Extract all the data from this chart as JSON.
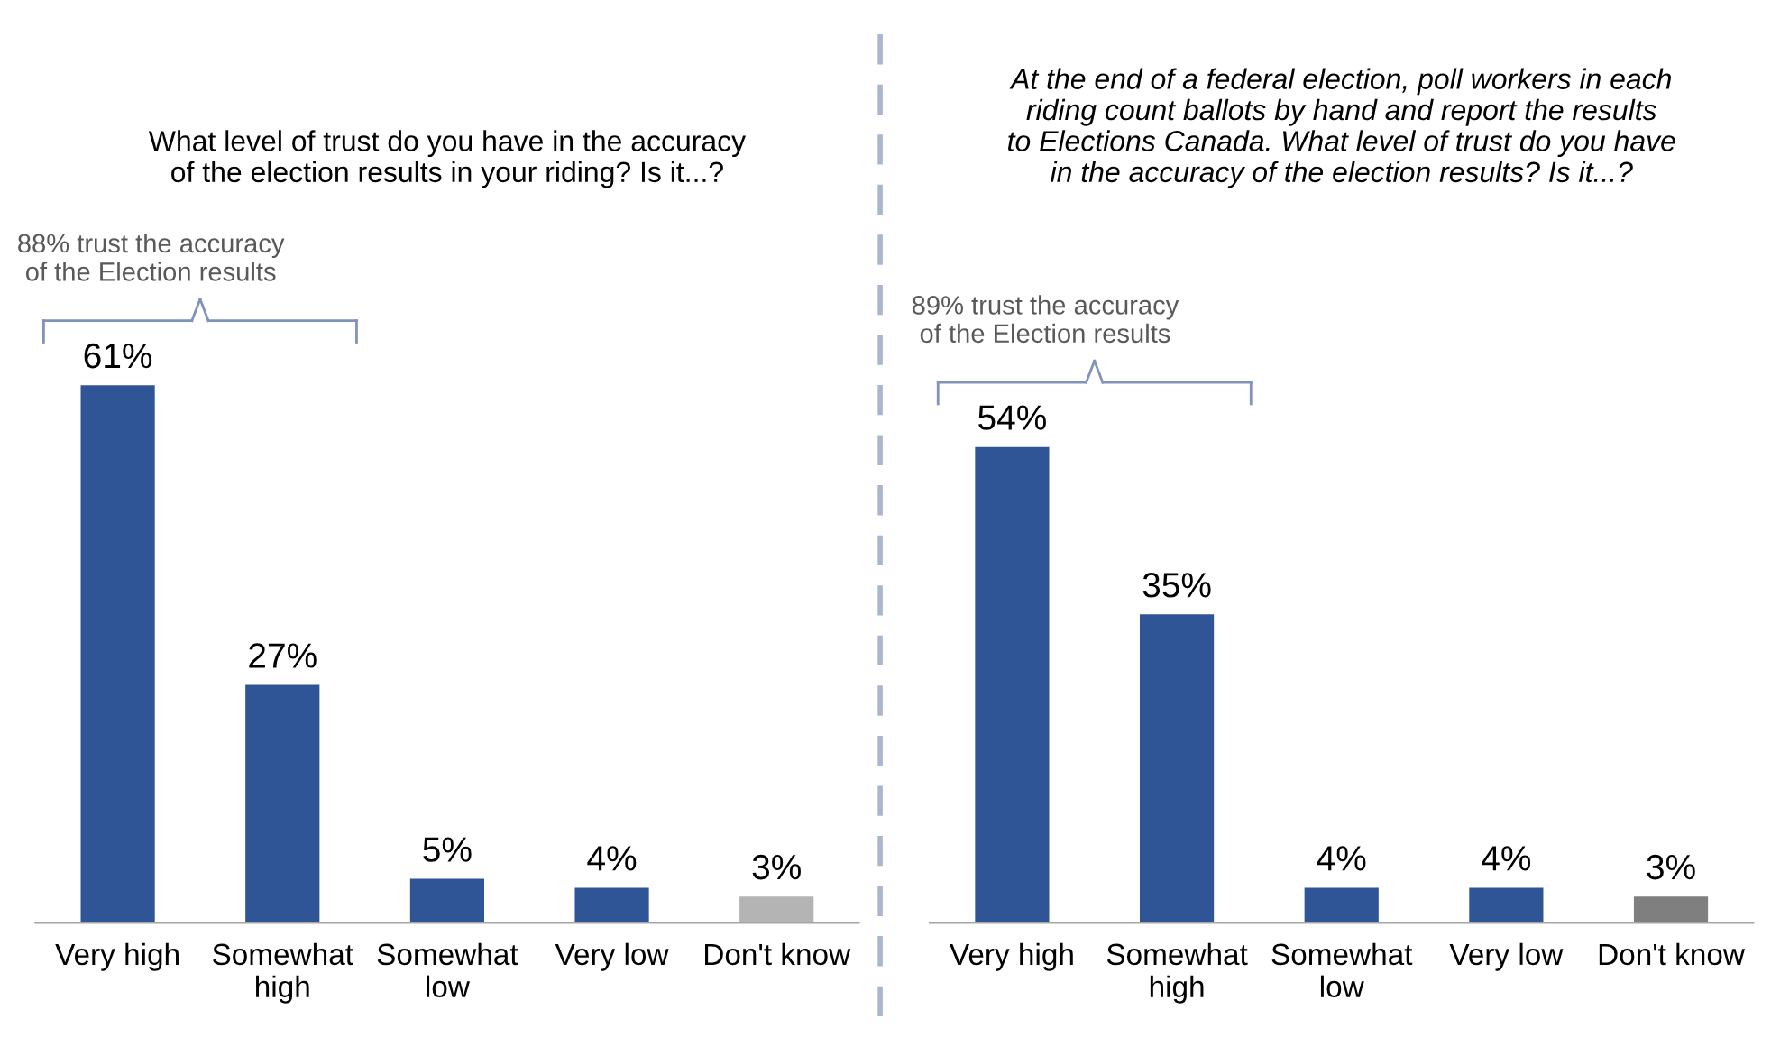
{
  "chart_data": [
    {
      "type": "bar",
      "title": "What level of trust do you have in the accuracy\nof the election results in your riding? Is it...?",
      "categories": [
        "Very high",
        "Somewhat\nhigh",
        "Somewhat\nlow",
        "Very low",
        "Don't know"
      ],
      "values": [
        61,
        27,
        5,
        4,
        3
      ],
      "value_labels": [
        "61%",
        "27%",
        "5%",
        "4%",
        "3%"
      ],
      "colors": [
        "#2f5597",
        "#2f5597",
        "#2f5597",
        "#2f5597",
        "#b4b4b4"
      ],
      "tick_labels": "x",
      "grid": false,
      "legend": false,
      "annotations": [
        "88% trust the accuracy\nof the Election results"
      ]
    },
    {
      "type": "bar",
      "title": "At the end of a federal election, poll workers in each\nriding count ballots by hand and report the results\nto Elections Canada. What level of trust do you have\nin the accuracy of the election results? Is it...?",
      "categories": [
        "Very high",
        "Somewhat\nhigh",
        "Somewhat\nlow",
        "Very low",
        "Don't know"
      ],
      "values": [
        54,
        35,
        4,
        4,
        3
      ],
      "value_labels": [
        "54%",
        "35%",
        "4%",
        "4%",
        "3%"
      ],
      "colors": [
        "#2f5597",
        "#2f5597",
        "#2f5597",
        "#2f5597",
        "#7f7f7f"
      ],
      "tick_labels": "x",
      "grid": false,
      "legend": false,
      "annotations": [
        "89% trust the accuracy\nof the Election results"
      ]
    }
  ]
}
